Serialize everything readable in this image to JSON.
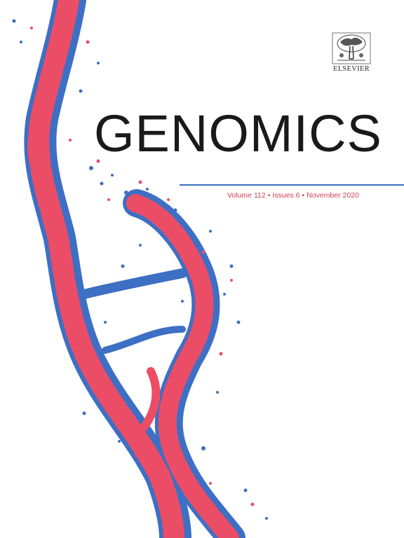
{
  "cover": {
    "publisher": "ELSEVIER",
    "journal_title": "GENOMICS",
    "volume": "Volume 112",
    "issues": "Issues 6",
    "date": "November 2020",
    "separator": "•"
  },
  "colors": {
    "helix_red": "#ec4d66",
    "helix_blue": "#3d6fc4",
    "rule_blue": "#3a6fbf",
    "issue_text": "#d13f55",
    "title_text": "#1a1a1a"
  },
  "icons": {
    "publisher_logo": "elsevier-tree-icon",
    "cover_art": "dna-double-helix-illustration"
  }
}
